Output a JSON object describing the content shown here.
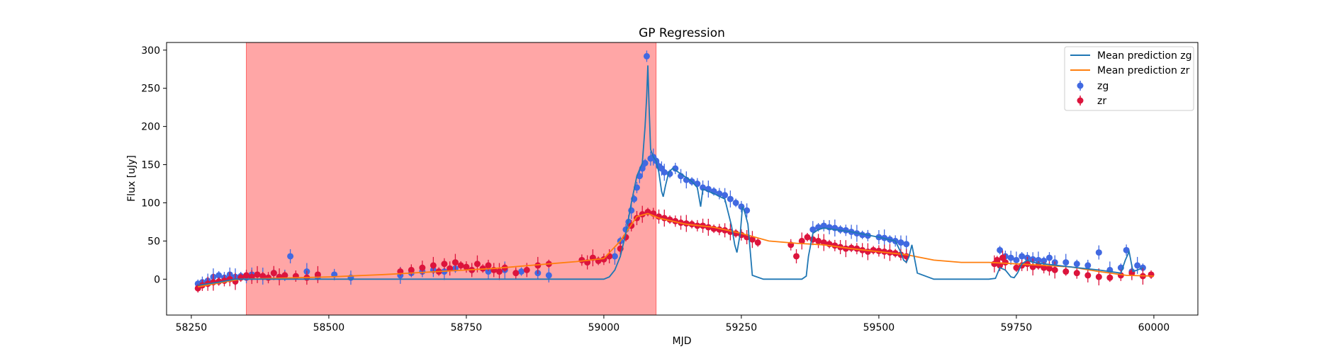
{
  "chart_data": {
    "type": "line",
    "title": "GP Regression",
    "xlabel": "MJD",
    "ylabel": "Flux [uJy]",
    "xlim": [
      58205,
      60080
    ],
    "ylim": [
      -47,
      310
    ],
    "xticks": [
      58250,
      58500,
      58750,
      59000,
      59250,
      59500,
      59750,
      60000
    ],
    "yticks": [
      0,
      50,
      100,
      150,
      200,
      250,
      300
    ],
    "grid": false,
    "legend_position": "top-right",
    "shaded_region": {
      "x0": 58350,
      "x1": 59095,
      "color": "#ff0000",
      "alpha": 0.35
    },
    "colors": {
      "mean_zg": "#1f77b4",
      "mean_zr": "#ff7f0e",
      "zg": "#4169e1",
      "zr": "#dc143c"
    },
    "series": [
      {
        "name": "Mean prediction zg",
        "kind": "line",
        "x": [
          58262,
          58300,
          58330,
          58345,
          58360,
          58380,
          58400,
          58500,
          58600,
          58700,
          58800,
          58900,
          58960,
          59000,
          59010,
          59020,
          59030,
          59040,
          59050,
          59060,
          59070,
          59075,
          59078,
          59080,
          59082,
          59085,
          59090,
          59095,
          59100,
          59105,
          59108,
          59112,
          59118,
          59125,
          59140,
          59150,
          59160,
          59170,
          59176,
          59180,
          59190,
          59200,
          59220,
          59232,
          59238,
          59242,
          59248,
          59252,
          59256,
          59262,
          59270,
          59290,
          59350,
          59360,
          59368,
          59372,
          59380,
          59390,
          59400,
          59450,
          59500,
          59530,
          59540,
          59545,
          59550,
          59555,
          59560,
          59570,
          59600,
          59700,
          59712,
          59720,
          59730,
          59740,
          59746,
          59752,
          59760,
          59770,
          59780,
          59800,
          59850,
          59900,
          59940,
          59948,
          59955,
          59962,
          59970,
          59980
        ],
        "y": [
          -8,
          -4,
          0,
          0,
          0,
          0,
          0,
          0,
          0,
          0,
          0,
          0,
          0,
          0,
          3,
          12,
          30,
          60,
          100,
          135,
          152,
          200,
          240,
          280,
          230,
          170,
          160,
          155,
          140,
          115,
          108,
          122,
          140,
          145,
          138,
          133,
          128,
          120,
          95,
          118,
          115,
          112,
          105,
          70,
          45,
          35,
          60,
          95,
          88,
          72,
          5,
          0,
          0,
          0,
          4,
          30,
          60,
          65,
          67,
          62,
          55,
          50,
          35,
          25,
          22,
          30,
          45,
          8,
          0,
          0,
          1,
          15,
          12,
          3,
          2,
          8,
          20,
          25,
          22,
          20,
          16,
          12,
          8,
          25,
          36,
          10,
          12,
          15
        ]
      },
      {
        "name": "Mean prediction zr",
        "kind": "line",
        "x": [
          58262,
          58300,
          58340,
          58400,
          58500,
          58600,
          58700,
          58800,
          58900,
          58950,
          59000,
          59030,
          59060,
          59080,
          59100,
          59150,
          59200,
          59250,
          59300,
          59350,
          59400,
          59450,
          59500,
          59550,
          59600,
          59650,
          59700,
          59750,
          59800,
          59850,
          59900,
          59950,
          60000
        ],
        "y": [
          -10,
          -5,
          0,
          1,
          3,
          6,
          10,
          14,
          20,
          23,
          27,
          50,
          82,
          86,
          80,
          72,
          68,
          60,
          50,
          47,
          45,
          40,
          36,
          32,
          25,
          22,
          22,
          20,
          18,
          16,
          10,
          5,
          4
        ]
      },
      {
        "name": "zg",
        "kind": "points",
        "x": [
          58262,
          58270,
          58280,
          58290,
          58300,
          58310,
          58320,
          58330,
          58340,
          58350,
          58360,
          58380,
          58400,
          58420,
          58430,
          58460,
          58480,
          58510,
          58540,
          58630,
          58650,
          58670,
          58690,
          58710,
          58730,
          58760,
          58790,
          58820,
          58850,
          58880,
          58900,
          59020,
          59030,
          59040,
          59045,
          59050,
          59055,
          59060,
          59065,
          59070,
          59075,
          59078,
          59085,
          59090,
          59095,
          59100,
          59105,
          59110,
          59120,
          59130,
          59140,
          59150,
          59160,
          59170,
          59180,
          59190,
          59200,
          59210,
          59220,
          59230,
          59240,
          59250,
          59260,
          59380,
          59390,
          59400,
          59410,
          59420,
          59430,
          59440,
          59450,
          59460,
          59470,
          59480,
          59500,
          59510,
          59520,
          59530,
          59540,
          59550,
          59720,
          59730,
          59740,
          59750,
          59760,
          59770,
          59780,
          59790,
          59800,
          59810,
          59820,
          59840,
          59860,
          59880,
          59900,
          59920,
          59940,
          59950,
          59960,
          59970,
          59980
        ],
        "y": [
          -6,
          -4,
          -2,
          3,
          5,
          2,
          6,
          3,
          4,
          2,
          6,
          4,
          8,
          5,
          30,
          10,
          3,
          6,
          2,
          5,
          8,
          10,
          12,
          10,
          14,
          12,
          10,
          12,
          10,
          8,
          5,
          30,
          50,
          65,
          75,
          90,
          105,
          120,
          135,
          145,
          152,
          292,
          158,
          160,
          155,
          148,
          145,
          140,
          138,
          145,
          135,
          130,
          128,
          125,
          120,
          118,
          115,
          112,
          110,
          105,
          100,
          95,
          90,
          65,
          68,
          70,
          68,
          67,
          65,
          64,
          62,
          60,
          58,
          57,
          55,
          54,
          52,
          50,
          48,
          46,
          38,
          30,
          28,
          25,
          30,
          28,
          26,
          25,
          24,
          28,
          22,
          22,
          20,
          18,
          35,
          12,
          15,
          38,
          10,
          18,
          15
        ]
      },
      {
        "name": "zr",
        "kind": "points",
        "x": [
          58262,
          58270,
          58280,
          58290,
          58300,
          58310,
          58320,
          58330,
          58340,
          58350,
          58360,
          58370,
          58380,
          58390,
          58400,
          58410,
          58420,
          58440,
          58460,
          58480,
          58630,
          58650,
          58670,
          58690,
          58700,
          58710,
          58720,
          58730,
          58740,
          58750,
          58760,
          58770,
          58780,
          58790,
          58800,
          58810,
          58820,
          58840,
          58860,
          58880,
          58900,
          58960,
          58970,
          58980,
          58990,
          59000,
          59010,
          59030,
          59040,
          59050,
          59060,
          59070,
          59080,
          59090,
          59100,
          59110,
          59120,
          59130,
          59140,
          59150,
          59160,
          59170,
          59180,
          59190,
          59200,
          59210,
          59220,
          59230,
          59240,
          59250,
          59260,
          59270,
          59280,
          59340,
          59350,
          59360,
          59370,
          59380,
          59390,
          59400,
          59410,
          59420,
          59430,
          59440,
          59450,
          59460,
          59470,
          59480,
          59490,
          59500,
          59510,
          59520,
          59530,
          59540,
          59550,
          59710,
          59715,
          59720,
          59725,
          59730,
          59750,
          59760,
          59770,
          59780,
          59790,
          59800,
          59810,
          59820,
          59840,
          59860,
          59880,
          59900,
          59920,
          59940,
          59960,
          59980,
          59995
        ],
        "y": [
          -12,
          -8,
          -6,
          -4,
          -3,
          -2,
          0,
          -3,
          2,
          5,
          3,
          6,
          4,
          2,
          8,
          3,
          5,
          4,
          2,
          6,
          10,
          12,
          15,
          18,
          10,
          20,
          14,
          22,
          18,
          16,
          12,
          20,
          14,
          18,
          12,
          10,
          15,
          8,
          12,
          18,
          20,
          25,
          22,
          28,
          24,
          26,
          30,
          40,
          55,
          70,
          80,
          85,
          88,
          86,
          82,
          80,
          78,
          76,
          74,
          73,
          72,
          70,
          70,
          68,
          66,
          65,
          64,
          62,
          60,
          58,
          55,
          52,
          48,
          45,
          30,
          50,
          55,
          52,
          50,
          48,
          46,
          44,
          42,
          40,
          41,
          40,
          38,
          36,
          38,
          37,
          36,
          35,
          34,
          32,
          30,
          20,
          25,
          18,
          28,
          22,
          15,
          18,
          20,
          16,
          18,
          15,
          14,
          12,
          10,
          8,
          5,
          3,
          2,
          5,
          8,
          4,
          6
        ]
      }
    ]
  }
}
